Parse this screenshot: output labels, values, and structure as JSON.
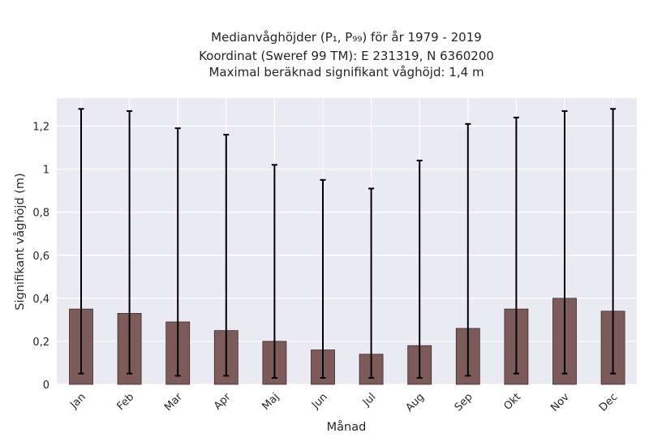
{
  "chart_data": {
    "type": "bar",
    "title_lines": [
      "Medianvåghöjder (P₁, P₉₉) för år 1979 - 2019",
      "Koordinat (Sweref 99 TM): E 231319, N 6360200",
      "Maximal beräknad signifikant våghöjd: 1,4 m"
    ],
    "xlabel": "Månad",
    "ylabel": "Signifikant våghöjd (m)",
    "categories": [
      "Jan",
      "Feb",
      "Mar",
      "Apr",
      "Maj",
      "Jun",
      "Jul",
      "Aug",
      "Sep",
      "Okt",
      "Nov",
      "Dec"
    ],
    "values": [
      0.35,
      0.33,
      0.29,
      0.25,
      0.2,
      0.16,
      0.14,
      0.18,
      0.26,
      0.35,
      0.4,
      0.34
    ],
    "error_low": [
      0.05,
      0.05,
      0.04,
      0.04,
      0.03,
      0.03,
      0.03,
      0.03,
      0.04,
      0.05,
      0.05,
      0.05
    ],
    "error_high": [
      1.28,
      1.27,
      1.19,
      1.16,
      1.02,
      0.95,
      0.91,
      1.04,
      1.21,
      1.24,
      1.27,
      1.28
    ],
    "ylim": [
      0,
      1.33
    ],
    "yticks": [
      0,
      0.2,
      0.4,
      0.6,
      0.8,
      1,
      1.2
    ],
    "ytick_labels": [
      "0",
      "0,2",
      "0,4",
      "0,6",
      "0,8",
      "1",
      "1,2"
    ],
    "grid": true,
    "colors": {
      "bar": "#7d5b5b",
      "bar_edge": "#3c2b2b",
      "error": "#000000",
      "plot_background": "#eaeaf2",
      "grid": "#ffffff"
    }
  }
}
